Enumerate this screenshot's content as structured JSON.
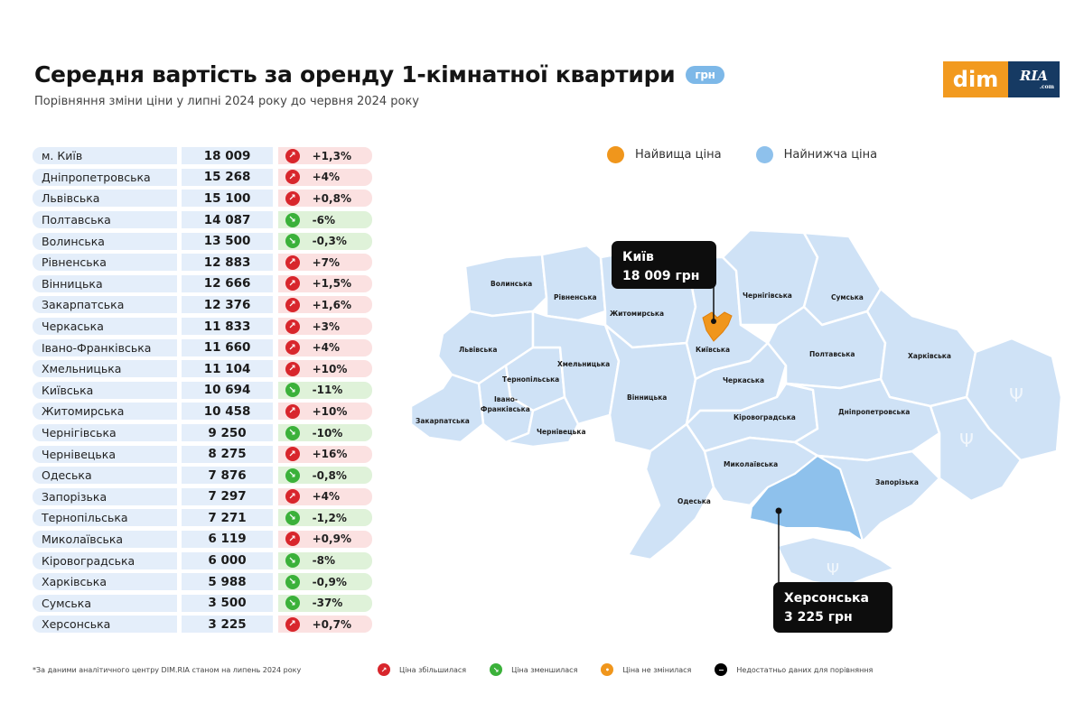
{
  "header": {
    "title": "Середня вартість за оренду 1-кімнатної квартири",
    "unit_badge": "грн",
    "subtitle": "Порівняння зміни ціни у липні 2024 року до червня 2024 року"
  },
  "logo": {
    "part1": "dim",
    "part2": "RIA",
    "part2_small": ".com"
  },
  "colors": {
    "increase": "#d8262c",
    "decrease": "#3bb13a",
    "unchanged": "#f0961c",
    "no_data": "#000000",
    "highest": "#f0961c",
    "lowest": "#7db8e8",
    "map_fill": "#cfe2f6",
    "lowest_fill": "#8ec1ec"
  },
  "table": {
    "rows": [
      {
        "region": "м. Київ",
        "price": "18 009",
        "change": "+1,3%",
        "direction": "up"
      },
      {
        "region": "Дніпропетровська",
        "price": "15 268",
        "change": "+4%",
        "direction": "up"
      },
      {
        "region": "Львівська",
        "price": "15 100",
        "change": "+0,8%",
        "direction": "up"
      },
      {
        "region": "Полтавська",
        "price": "14 087",
        "change": "-6%",
        "direction": "down"
      },
      {
        "region": "Волинська",
        "price": "13 500",
        "change": "-0,3%",
        "direction": "down"
      },
      {
        "region": "Рівненська",
        "price": "12 883",
        "change": "+7%",
        "direction": "up"
      },
      {
        "region": "Вінницька",
        "price": "12 666",
        "change": "+1,5%",
        "direction": "up"
      },
      {
        "region": "Закарпатська",
        "price": "12 376",
        "change": "+1,6%",
        "direction": "up"
      },
      {
        "region": "Черкаська",
        "price": "11 833",
        "change": "+3%",
        "direction": "up"
      },
      {
        "region": "Івано-Франківська",
        "price": "11 660",
        "change": "+4%",
        "direction": "up"
      },
      {
        "region": "Хмельницька",
        "price": "11 104",
        "change": "+10%",
        "direction": "up"
      },
      {
        "region": "Київська",
        "price": "10 694",
        "change": "-11%",
        "direction": "down"
      },
      {
        "region": "Житомирська",
        "price": "10 458",
        "change": "+10%",
        "direction": "up"
      },
      {
        "region": "Чернігівська",
        "price": "9 250",
        "change": "-10%",
        "direction": "down"
      },
      {
        "region": "Чернівецька",
        "price": "8 275",
        "change": "+16%",
        "direction": "up"
      },
      {
        "region": "Одеська",
        "price": "7 876",
        "change": "-0,8%",
        "direction": "down"
      },
      {
        "region": "Запорізька",
        "price": "7 297",
        "change": "+4%",
        "direction": "up"
      },
      {
        "region": "Тернопільська",
        "price": "7 271",
        "change": "-1,2%",
        "direction": "down"
      },
      {
        "region": "Миколаївська",
        "price": "6 119",
        "change": "+0,9%",
        "direction": "up"
      },
      {
        "region": "Кіровоградська",
        "price": "6 000",
        "change": "-8%",
        "direction": "down"
      },
      {
        "region": "Харківська",
        "price": "5 988",
        "change": "-0,9%",
        "direction": "down"
      },
      {
        "region": "Сумська",
        "price": "3 500",
        "change": "-37%",
        "direction": "down"
      },
      {
        "region": "Херсонська",
        "price": "3 225",
        "change": "+0,7%",
        "direction": "up"
      }
    ]
  },
  "map_legend": {
    "highest": "Найвища ціна",
    "lowest": "Найнижча ціна"
  },
  "map": {
    "labels": {
      "volynska": "Волинська",
      "rivnenska": "Рівненська",
      "zhytomyrska": "Житомирська",
      "kyivska": "Київська",
      "chernihivska": "Чернігівська",
      "sumska": "Сумська",
      "lvivska": "Львівська",
      "khmelnytska": "Хмельницька",
      "ternopilska": "Тернопільська",
      "ivano_frankivska_1": "Івано-",
      "ivano_frankivska_2": "Франківська",
      "zakarpatska": "Закарпатська",
      "chernivetska": "Чернівецька",
      "vinnytska": "Вінницька",
      "cherkaska": "Черкаська",
      "poltavska": "Полтавська",
      "kharkivska": "Харківська",
      "kirovohradska": "Кіровоградська",
      "dnipropetrovska": "Дніпропетровська",
      "mykolaivska": "Миколаївська",
      "odeska": "Одеська",
      "zaporizka": "Запорізька"
    },
    "highest_callout": {
      "name": "Київ",
      "value": "18 009 грн"
    },
    "lowest_callout": {
      "name": "Херсонська",
      "value": "3 225 грн"
    }
  },
  "footer": {
    "footnote": "*За даними аналітичного центру DIM.RIA станом на липень 2024 року",
    "legend": {
      "increase": "Ціна збільшилася",
      "decrease": "Ціна зменшилася",
      "unchanged": "Ціна не змінилася",
      "no_data": "Недостатньо даних для порівняння"
    }
  },
  "icons": {
    "up": "↗",
    "down": "↘",
    "unchanged": "•",
    "no_data": "−"
  }
}
